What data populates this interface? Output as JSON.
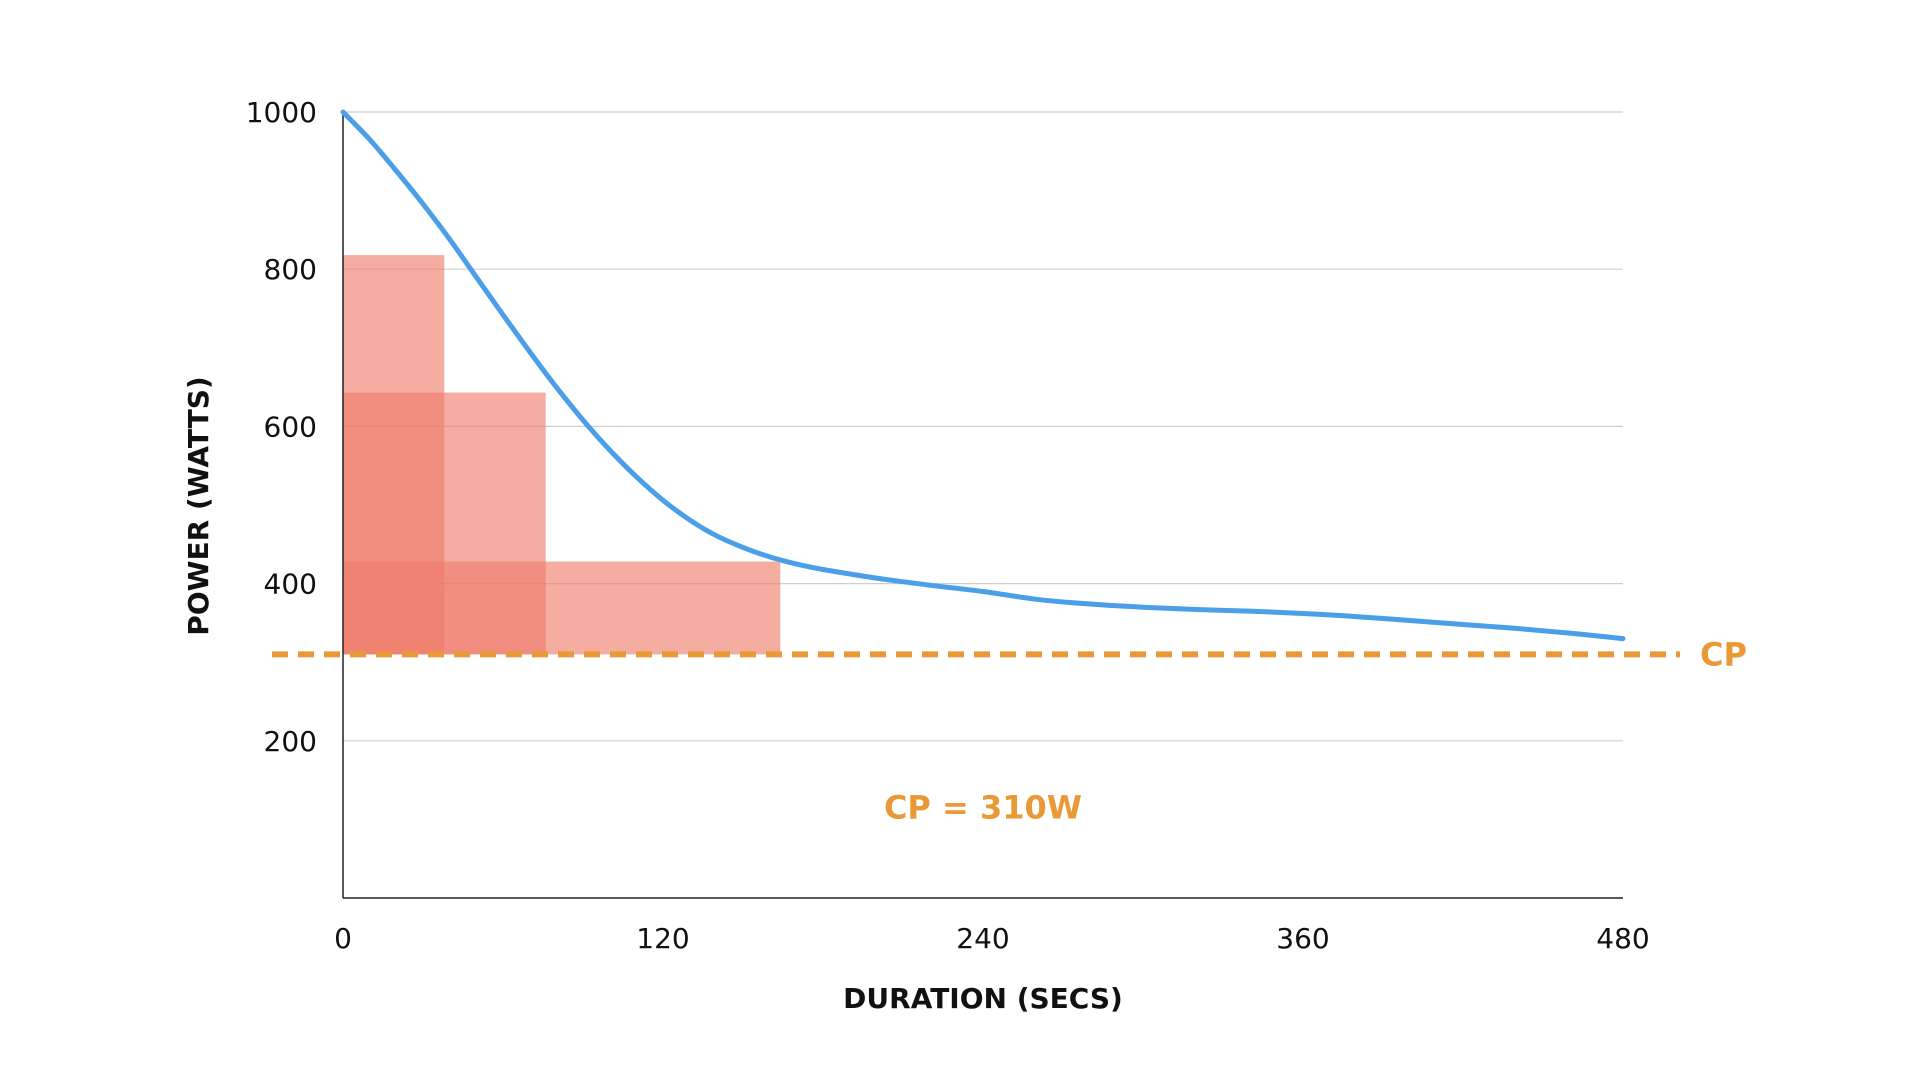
{
  "chart_data": {
    "type": "line",
    "title": "",
    "xlabel": "DURATION (SECS)",
    "ylabel": "POWER (WATTS)",
    "xlim": [
      0,
      480
    ],
    "ylim": [
      0,
      1000
    ],
    "x_ticks": [
      0,
      120,
      240,
      360,
      480
    ],
    "y_ticks": [
      200,
      400,
      600,
      800,
      1000
    ],
    "grid": "horizontal",
    "series": [
      {
        "color": "#4a9fe8",
        "x": [
          0,
          10,
          20,
          30,
          40,
          50,
          60,
          70,
          80,
          90,
          100,
          110,
          120,
          130,
          140,
          150,
          160,
          170,
          180,
          200,
          220,
          240,
          260,
          280,
          300,
          320,
          340,
          360,
          380,
          400,
          420,
          440,
          460,
          480
        ],
        "y": [
          1000,
          965,
          925,
          883,
          838,
          790,
          742,
          695,
          650,
          608,
          570,
          536,
          506,
          481,
          461,
          446,
          434,
          425,
          418,
          407,
          398,
          390,
          380,
          374,
          370,
          367,
          365,
          362,
          358,
          353,
          348,
          343,
          337,
          330
        ]
      }
    ],
    "shaded_regions": [
      {
        "x_start": 0,
        "x_end": 38,
        "y_start": 310,
        "y_end": 818,
        "color": "#ef7a69"
      },
      {
        "x_start": 0,
        "x_end": 76,
        "y_start": 310,
        "y_end": 643,
        "color": "#ef7a69"
      },
      {
        "x_start": 0,
        "x_end": 164,
        "y_start": 310,
        "y_end": 428,
        "color": "#ef7a69"
      }
    ],
    "reference_line": {
      "label": "CP",
      "y": 310,
      "color": "#e99a37",
      "style": "dashed"
    },
    "annotations": [
      {
        "text": "CP = 310W",
        "x": 240,
        "y": 115,
        "color": "#e99a37"
      }
    ]
  }
}
